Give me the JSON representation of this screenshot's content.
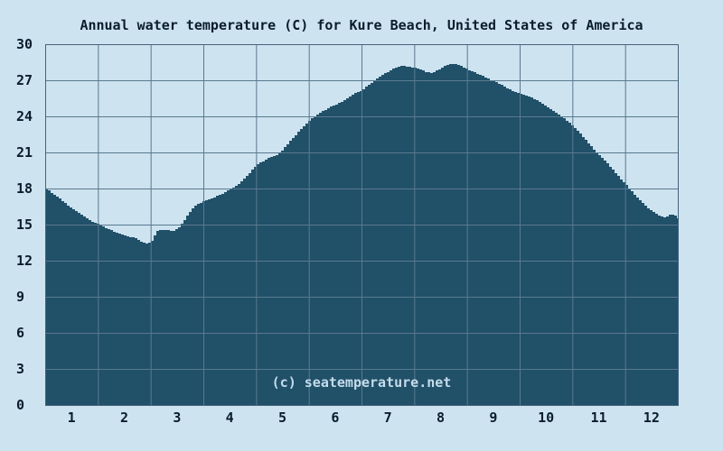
{
  "chart_data": {
    "type": "area",
    "title": "Annual water temperature (C) for Kure Beach, United States of America",
    "watermark": "(c) seatemperature.net",
    "xlabel": "",
    "ylabel": "",
    "xlim": [
      0,
      12
    ],
    "ylim": [
      0,
      30
    ],
    "grid": true,
    "legend": "none",
    "x_ticks": [
      "1",
      "2",
      "3",
      "4",
      "5",
      "6",
      "7",
      "8",
      "9",
      "10",
      "11",
      "12"
    ],
    "y_ticks": [
      0,
      3,
      6,
      9,
      12,
      15,
      18,
      21,
      24,
      27,
      30
    ],
    "series": [
      {
        "name": "water temperature (C)",
        "x_unit": "month (0 = Jan 1, 12 = Dec 31)",
        "points": [
          [
            0.0,
            18.0
          ],
          [
            0.15,
            17.5
          ],
          [
            0.3,
            17.0
          ],
          [
            0.5,
            16.3
          ],
          [
            0.7,
            15.7
          ],
          [
            0.85,
            15.3
          ],
          [
            1.0,
            15.0
          ],
          [
            1.2,
            14.6
          ],
          [
            1.4,
            14.2
          ],
          [
            1.55,
            14.0
          ],
          [
            1.7,
            13.9
          ],
          [
            1.8,
            13.6
          ],
          [
            1.9,
            13.4
          ],
          [
            2.0,
            13.6
          ],
          [
            2.1,
            14.5
          ],
          [
            2.25,
            14.6
          ],
          [
            2.4,
            14.4
          ],
          [
            2.55,
            14.9
          ],
          [
            2.65,
            15.6
          ],
          [
            2.8,
            16.5
          ],
          [
            3.0,
            17.0
          ],
          [
            3.2,
            17.3
          ],
          [
            3.4,
            17.7
          ],
          [
            3.6,
            18.2
          ],
          [
            3.8,
            19.0
          ],
          [
            4.0,
            20.0
          ],
          [
            4.2,
            20.5
          ],
          [
            4.4,
            20.8
          ],
          [
            4.6,
            21.8
          ],
          [
            4.8,
            22.8
          ],
          [
            5.0,
            23.7
          ],
          [
            5.2,
            24.3
          ],
          [
            5.4,
            24.8
          ],
          [
            5.6,
            25.2
          ],
          [
            5.8,
            25.8
          ],
          [
            6.0,
            26.2
          ],
          [
            6.2,
            26.9
          ],
          [
            6.4,
            27.5
          ],
          [
            6.6,
            28.0
          ],
          [
            6.75,
            28.2
          ],
          [
            6.9,
            28.1
          ],
          [
            7.05,
            28.0
          ],
          [
            7.2,
            27.7
          ],
          [
            7.3,
            27.6
          ],
          [
            7.45,
            27.9
          ],
          [
            7.6,
            28.3
          ],
          [
            7.7,
            28.4
          ],
          [
            7.8,
            28.3
          ],
          [
            7.9,
            28.1
          ],
          [
            8.0,
            27.9
          ],
          [
            8.2,
            27.5
          ],
          [
            8.4,
            27.1
          ],
          [
            8.6,
            26.7
          ],
          [
            8.8,
            26.2
          ],
          [
            9.0,
            25.9
          ],
          [
            9.2,
            25.6
          ],
          [
            9.4,
            25.1
          ],
          [
            9.6,
            24.5
          ],
          [
            9.8,
            23.9
          ],
          [
            10.0,
            23.2
          ],
          [
            10.2,
            22.2
          ],
          [
            10.4,
            21.2
          ],
          [
            10.6,
            20.3
          ],
          [
            10.8,
            19.3
          ],
          [
            11.0,
            18.3
          ],
          [
            11.2,
            17.3
          ],
          [
            11.4,
            16.4
          ],
          [
            11.6,
            15.8
          ],
          [
            11.75,
            15.6
          ],
          [
            11.85,
            15.9
          ],
          [
            11.95,
            15.7
          ],
          [
            12.0,
            15.4
          ]
        ]
      }
    ],
    "colors": {
      "background": "#cde3ef",
      "fill": "#215069",
      "grid": "#597a8f",
      "frame": "#44637d",
      "text": "#0a1c2e",
      "watermark": "#c4dcea"
    }
  }
}
